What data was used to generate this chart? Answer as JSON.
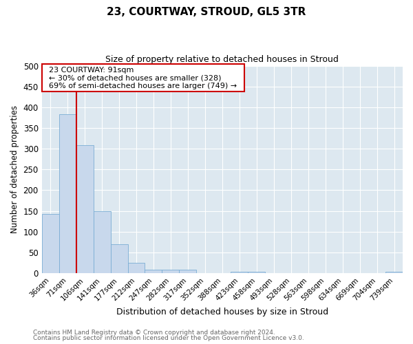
{
  "title": "23, COURTWAY, STROUD, GL5 3TR",
  "subtitle": "Size of property relative to detached houses in Stroud",
  "xlabel": "Distribution of detached houses by size in Stroud",
  "ylabel": "Number of detached properties",
  "footer_line1": "Contains HM Land Registry data © Crown copyright and database right 2024.",
  "footer_line2": "Contains public sector information licensed under the Open Government Licence v3.0.",
  "bin_labels": [
    "36sqm",
    "71sqm",
    "106sqm",
    "141sqm",
    "177sqm",
    "212sqm",
    "247sqm",
    "282sqm",
    "317sqm",
    "352sqm",
    "388sqm",
    "423sqm",
    "458sqm",
    "493sqm",
    "528sqm",
    "563sqm",
    "598sqm",
    "634sqm",
    "669sqm",
    "704sqm",
    "739sqm"
  ],
  "bar_heights": [
    143,
    383,
    308,
    149,
    70,
    24,
    9,
    9,
    9,
    0,
    0,
    4,
    4,
    0,
    0,
    0,
    0,
    0,
    0,
    0,
    4
  ],
  "bar_color": "#c8d8ec",
  "bar_edge_color": "#7aadd4",
  "ylim": [
    0,
    500
  ],
  "yticks": [
    0,
    50,
    100,
    150,
    200,
    250,
    300,
    350,
    400,
    450,
    500
  ],
  "vline_x": 1.5,
  "annotation_text_line1": "23 COURTWAY: 91sqm",
  "annotation_text_line2": "← 30% of detached houses are smaller (328)",
  "annotation_text_line3": "69% of semi-detached houses are larger (749) →",
  "vline_color": "#cc0000",
  "annotation_box_edge_color": "#cc0000",
  "fig_bg_color": "#ffffff",
  "plot_bg_color": "#dde8f0",
  "grid_color": "#ffffff"
}
